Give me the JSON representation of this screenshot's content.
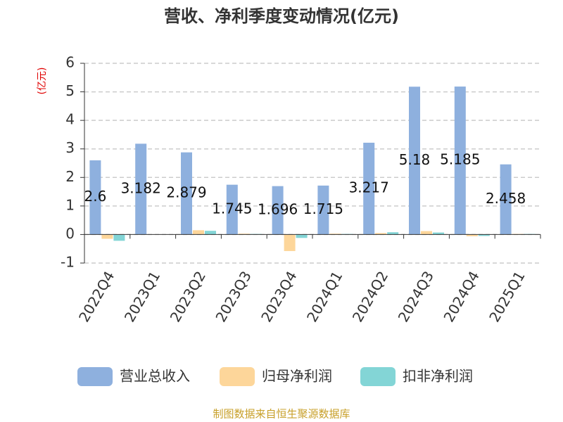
{
  "chart_data": {
    "type": "bar",
    "title": "营收、净利季度变动情况(亿元)",
    "y_label": "(亿元)",
    "source": "制图数据来自恒生聚源数据库",
    "categories": [
      "2022Q4",
      "2023Q1",
      "2023Q2",
      "2023Q3",
      "2023Q4",
      "2024Q1",
      "2024Q2",
      "2024Q3",
      "2024Q4",
      "2025Q1"
    ],
    "series": [
      {
        "name": "营业总收入",
        "color": "#8eb0de",
        "values": [
          2.6,
          3.182,
          2.879,
          1.745,
          1.696,
          1.715,
          3.217,
          5.18,
          5.185,
          2.458
        ],
        "show_labels": true
      },
      {
        "name": "归母净利润",
        "color": "#fdd69a",
        "values": [
          -0.15,
          0.01,
          0.15,
          0.03,
          -0.58,
          0.03,
          0.05,
          0.12,
          -0.06,
          0.02
        ]
      },
      {
        "name": "扣非净利润",
        "color": "#83d5d6",
        "values": [
          -0.22,
          0.01,
          0.13,
          0.02,
          -0.12,
          0.02,
          0.08,
          0.07,
          -0.05,
          0.02
        ]
      }
    ],
    "ylim": [
      -1,
      6
    ],
    "yticks": [
      -1,
      0,
      1,
      2,
      3,
      4,
      5,
      6
    ],
    "grid": true
  }
}
